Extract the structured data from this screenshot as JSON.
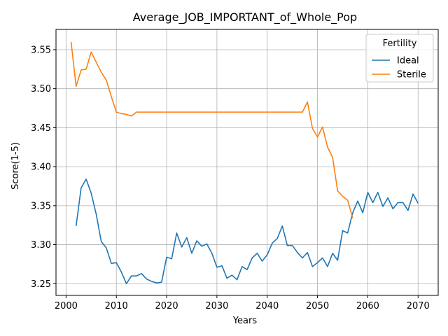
{
  "chart_data": {
    "type": "line",
    "title": "Average_JOB_IMPORTANT_of_Whole_Pop",
    "xlabel": "Years",
    "ylabel": "Score(1-5)",
    "xlim": [
      1998,
      2074
    ],
    "ylim": [
      3.235,
      3.576
    ],
    "xticks": [
      2000,
      2010,
      2020,
      2030,
      2040,
      2050,
      2060,
      2070
    ],
    "yticks": [
      3.25,
      3.3,
      3.35,
      3.4,
      3.45,
      3.5,
      3.55
    ],
    "grid": true,
    "legend": {
      "title": "Fertility",
      "placement": "top-right"
    },
    "series": [
      {
        "name": "Ideal",
        "color": "#1f77b4",
        "x": [
          2002,
          2003,
          2004,
          2005,
          2006,
          2007,
          2008,
          2009,
          2010,
          2011,
          2012,
          2013,
          2014,
          2015,
          2016,
          2017,
          2018,
          2019,
          2020,
          2021,
          2022,
          2023,
          2024,
          2025,
          2026,
          2027,
          2028,
          2029,
          2030,
          2031,
          2032,
          2033,
          2034,
          2035,
          2036,
          2037,
          2038,
          2039,
          2040,
          2041,
          2042,
          2043,
          2044,
          2045,
          2046,
          2047,
          2048,
          2049,
          2050,
          2051,
          2052,
          2053,
          2054,
          2055,
          2056,
          2057,
          2058,
          2059,
          2060,
          2061,
          2062,
          2063,
          2064,
          2065,
          2066,
          2067,
          2068,
          2069,
          2070
        ],
        "values": [
          3.324,
          3.373,
          3.384,
          3.366,
          3.339,
          3.304,
          3.296,
          3.276,
          3.277,
          3.265,
          3.25,
          3.26,
          3.26,
          3.263,
          3.256,
          3.253,
          3.251,
          3.252,
          3.284,
          3.282,
          3.315,
          3.297,
          3.309,
          3.289,
          3.305,
          3.298,
          3.301,
          3.289,
          3.271,
          3.273,
          3.257,
          3.261,
          3.255,
          3.272,
          3.268,
          3.283,
          3.289,
          3.279,
          3.287,
          3.302,
          3.308,
          3.324,
          3.299,
          3.299,
          3.29,
          3.283,
          3.29,
          3.272,
          3.277,
          3.283,
          3.272,
          3.289,
          3.28,
          3.318,
          3.315,
          3.341,
          3.356,
          3.341,
          3.367,
          3.354,
          3.367,
          3.349,
          3.36,
          3.346,
          3.354,
          3.354,
          3.344,
          3.365,
          3.353
        ]
      },
      {
        "name": "Sterile",
        "color": "#ff7f0e",
        "x": [
          2001,
          2002,
          2003,
          2004,
          2005,
          2006,
          2007,
          2008,
          2009,
          2010,
          2011,
          2012,
          2013,
          2014,
          2015,
          2016,
          2017,
          2018,
          2019,
          2020,
          2025,
          2030,
          2035,
          2040,
          2045,
          2047,
          2048,
          2049,
          2050,
          2051,
          2052,
          2053,
          2054,
          2055,
          2056,
          2057
        ],
        "values": [
          3.56,
          3.503,
          3.524,
          3.525,
          3.547,
          3.534,
          3.521,
          3.511,
          3.49,
          3.47,
          3.468,
          3.467,
          3.465,
          3.47,
          3.47,
          3.47,
          3.47,
          3.47,
          3.47,
          3.47,
          3.47,
          3.47,
          3.47,
          3.47,
          3.47,
          3.47,
          3.483,
          3.449,
          3.438,
          3.451,
          3.425,
          3.412,
          3.369,
          3.362,
          3.357,
          3.334
        ]
      }
    ]
  }
}
